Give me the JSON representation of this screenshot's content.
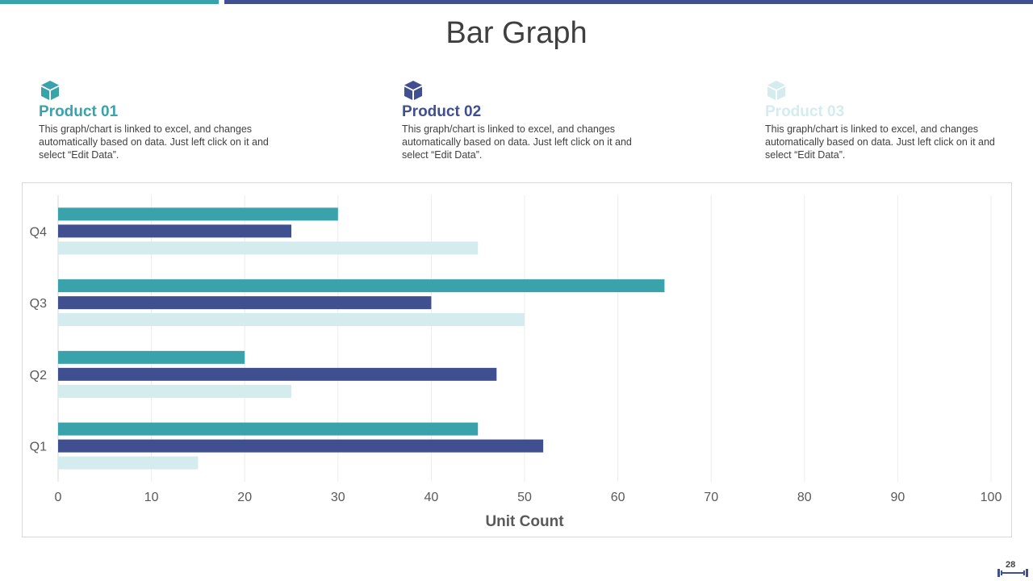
{
  "slide": {
    "title": "Bar Graph",
    "page_number": "28"
  },
  "products": [
    {
      "name": "Product 01",
      "color": "#3aa2aa",
      "description": "This graph/chart is linked to excel, and changes automatically based on data. Just left click on it and select “Edit Data”.",
      "icon": "box-icon"
    },
    {
      "name": "Product 02",
      "color": "#404f8f",
      "description": "This graph/chart is linked to excel, and changes automatically based on data. Just left click on it and select “Edit Data”.",
      "icon": "box-icon"
    },
    {
      "name": "Product 03",
      "color": "#d4ecee",
      "description": "This graph/chart is linked to excel, and changes automatically based on data. Just left click on it and select “Edit Data”.",
      "icon": "box-icon"
    }
  ],
  "chart_data": {
    "type": "bar",
    "orientation": "horizontal",
    "categories": [
      "Q1",
      "Q2",
      "Q3",
      "Q4"
    ],
    "series": [
      {
        "name": "Product 01",
        "color": "#3aa2aa",
        "values": [
          45,
          20,
          65,
          30
        ]
      },
      {
        "name": "Product 02",
        "color": "#404f8f",
        "values": [
          52,
          47,
          40,
          25
        ]
      },
      {
        "name": "Product 03",
        "color": "#d4ecee",
        "values": [
          15,
          25,
          50,
          45
        ]
      }
    ],
    "xlabel": "Unit Count",
    "ylabel": "",
    "xlim": [
      0,
      100
    ],
    "xticks": [
      0,
      10,
      20,
      30,
      40,
      50,
      60,
      70,
      80,
      90,
      100
    ],
    "grid": true
  }
}
